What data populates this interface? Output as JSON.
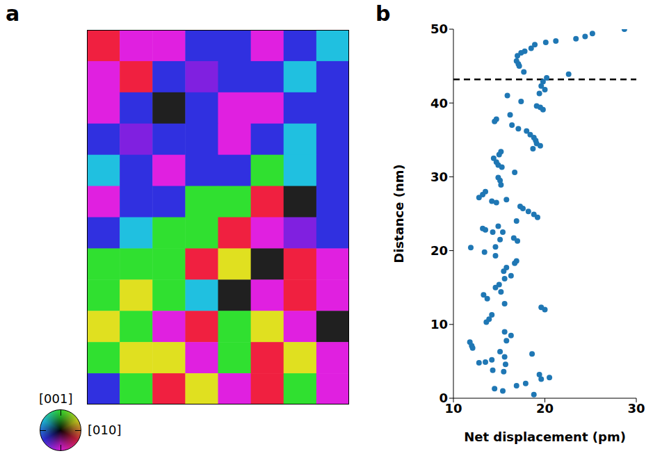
{
  "chart_data": [
    {
      "type": "heatmap",
      "panel": "a",
      "colors": [
        [
          "#f02040",
          "#e020e0",
          "#e020e0",
          "#3030e0",
          "#3030e0",
          "#e020e0",
          "#3030e0",
          "#20c0e0"
        ],
        [
          "#e020e0",
          "#f02040",
          "#3030e0",
          "#8020e0",
          "#3030e0",
          "#3030e0",
          "#20c0e0",
          "#3030e0"
        ],
        [
          "#e020e0",
          "#3030e0",
          "#202020",
          "#3030e0",
          "#e020e0",
          "#e020e0",
          "#3030e0",
          "#3030e0"
        ],
        [
          "#3030e0",
          "#8020e0",
          "#3030e0",
          "#3030e0",
          "#e020e0",
          "#3030e0",
          "#20c0e0",
          "#3030e0"
        ],
        [
          "#20c0e0",
          "#3030e0",
          "#e020e0",
          "#3030e0",
          "#3030e0",
          "#30e030",
          "#20c0e0",
          "#3030e0"
        ],
        [
          "#e020e0",
          "#3030e0",
          "#3030e0",
          "#30e030",
          "#30e030",
          "#f02040",
          "#202020",
          "#3030e0"
        ],
        [
          "#3030e0",
          "#20c0e0",
          "#30e030",
          "#30e030",
          "#f02040",
          "#e020e0",
          "#8020e0",
          "#3030e0"
        ],
        [
          "#30e030",
          "#30e030",
          "#30e030",
          "#f02040",
          "#e0e020",
          "#202020",
          "#f02040",
          "#e020e0"
        ],
        [
          "#30e030",
          "#e0e020",
          "#30e030",
          "#20c0e0",
          "#202020",
          "#e020e0",
          "#f02040",
          "#e020e0"
        ],
        [
          "#e0e020",
          "#30e030",
          "#e020e0",
          "#f02040",
          "#30e030",
          "#e0e020",
          "#e020e0",
          "#202020"
        ],
        [
          "#30e030",
          "#e0e020",
          "#e0e020",
          "#e020e0",
          "#30e030",
          "#f02040",
          "#e0e020",
          "#e020e0"
        ],
        [
          "#3030e0",
          "#30e030",
          "#f02040",
          "#e0e020",
          "#e020e0",
          "#f02040",
          "#30e030",
          "#e020e0"
        ]
      ],
      "colorwheel_labels": [
        "[001]",
        "[010]"
      ]
    },
    {
      "type": "scatter",
      "panel": "b",
      "xlabel": "Net displacement (pm)",
      "ylabel": "Distance (nm)",
      "color": "#1f77b4",
      "marker": "circle",
      "xlim": [
        10,
        30
      ],
      "xticks": [
        10,
        20,
        30
      ],
      "ylim": [
        0,
        50
      ],
      "yticks": [
        0,
        10,
        20,
        30,
        40,
        50
      ],
      "reference_line": {
        "y": 43.2,
        "line_style": "dashed"
      },
      "x": [
        28.7,
        25.2,
        24.4,
        23.4,
        22.6,
        21.2,
        20.1,
        18.9,
        18.5,
        17.8,
        17.4,
        17.0,
        16.9,
        17.1,
        17.2,
        17.7,
        20.2,
        19.8,
        19.6,
        20.0,
        19.4,
        15.9,
        19.8,
        19.1,
        19.5,
        17.4,
        16.2,
        14.7,
        14.5,
        16.4,
        17.1,
        18.0,
        18.4,
        18.8,
        19.0,
        19.1,
        19.5,
        18.7,
        15.2,
        15.0,
        14.4,
        14.7,
        14.9,
        15.3,
        16.7,
        14.9,
        15.1,
        15.2,
        13.5,
        13.2,
        12.8,
        14.2,
        15.8,
        14.7,
        17.3,
        17.6,
        18.2,
        18.8,
        19.2,
        16.9,
        15.4,
        13.2,
        13.5,
        14.3,
        14.9,
        16.6,
        15.1,
        17.0,
        14.6,
        11.9,
        13.4,
        14.6,
        16.9,
        16.7,
        15.8,
        15.5,
        16.3,
        15.6,
        15.0,
        14.6,
        15.2,
        13.3,
        13.7,
        15.6,
        19.6,
        20.0,
        14.2,
        13.9,
        13.6,
        15.6,
        16.3,
        15.8,
        11.8,
        12.0,
        12.1,
        18.6,
        15.1,
        15.6,
        13.5,
        14.2,
        15.7,
        12.8,
        14.3,
        15.5,
        16.9,
        17.9,
        20.5,
        19.4,
        19.6,
        14.5,
        15.4,
        18.8
      ],
      "y": [
        50.0,
        49.4,
        49.0,
        48.7,
        43.9,
        48.4,
        48.2,
        47.9,
        47.4,
        47.0,
        46.8,
        46.4,
        45.7,
        45.3,
        45.0,
        44.2,
        43.4,
        42.9,
        42.3,
        41.8,
        41.3,
        41.0,
        39.1,
        39.6,
        39.4,
        40.2,
        38.4,
        37.8,
        37.5,
        37.0,
        36.5,
        36.2,
        35.7,
        35.3,
        34.9,
        34.5,
        34.2,
        33.8,
        33.4,
        33.0,
        32.5,
        32.0,
        31.6,
        31.3,
        30.6,
        29.9,
        29.5,
        28.9,
        28.0,
        27.6,
        27.2,
        26.7,
        26.9,
        26.5,
        26.0,
        25.7,
        25.3,
        24.9,
        24.5,
        24.0,
        22.5,
        23.0,
        22.8,
        22.5,
        23.3,
        21.7,
        21.5,
        21.3,
        20.5,
        20.4,
        19.8,
        19.3,
        18.6,
        18.3,
        17.7,
        17.2,
        16.6,
        16.2,
        15.4,
        15.0,
        14.4,
        14.0,
        13.5,
        12.8,
        12.3,
        12.0,
        11.3,
        10.7,
        10.3,
        9.0,
        8.5,
        7.8,
        7.6,
        7.1,
        6.8,
        6.0,
        6.3,
        5.6,
        4.9,
        5.2,
        4.6,
        4.8,
        3.8,
        3.6,
        1.7,
        2.0,
        2.8,
        3.2,
        2.6,
        1.3,
        1.0,
        0.5
      ]
    }
  ]
}
